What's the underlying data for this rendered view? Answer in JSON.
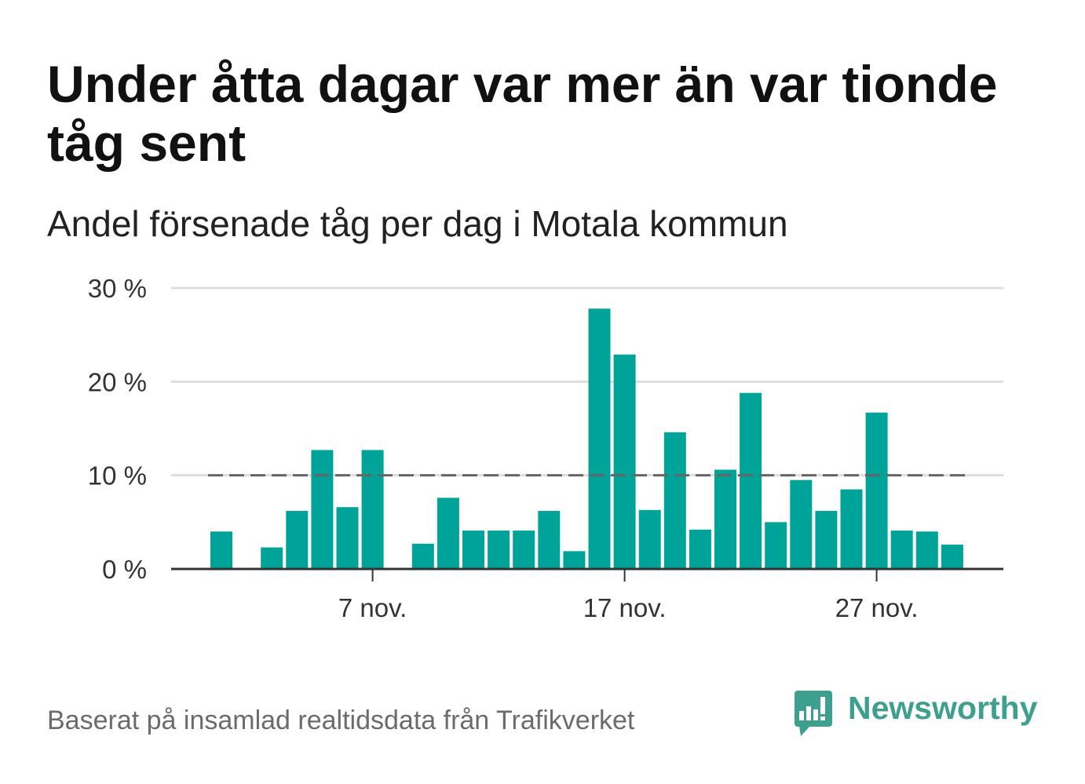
{
  "chart_data": {
    "type": "bar",
    "title": "Under åtta dagar var mer än var tionde tåg sent",
    "subtitle": "Andel försenade tåg per dag i Motala kommun",
    "xlabel": "",
    "ylabel": "",
    "categories": [
      "1 nov.",
      "2 nov.",
      "3 nov.",
      "4 nov.",
      "5 nov.",
      "6 nov.",
      "7 nov.",
      "8 nov.",
      "9 nov.",
      "10 nov.",
      "11 nov.",
      "12 nov.",
      "13 nov.",
      "14 nov.",
      "15 nov.",
      "16 nov.",
      "17 nov.",
      "18 nov.",
      "19 nov.",
      "20 nov.",
      "21 nov.",
      "22 nov.",
      "23 nov.",
      "24 nov.",
      "25 nov.",
      "26 nov.",
      "27 nov.",
      "28 nov.",
      "29 nov.",
      "30 nov."
    ],
    "values": [
      4.0,
      null,
      2.3,
      6.2,
      12.7,
      6.6,
      12.7,
      null,
      2.7,
      7.6,
      4.1,
      4.1,
      4.1,
      6.2,
      1.9,
      27.8,
      22.9,
      6.3,
      14.6,
      4.2,
      10.6,
      18.8,
      5.0,
      9.5,
      6.2,
      8.5,
      16.7,
      4.1,
      4.0,
      2.6
    ],
    "x_tick_labels": [
      "7 nov.",
      "17 nov.",
      "27 nov."
    ],
    "y_ticks": [
      0,
      10,
      20,
      30
    ],
    "y_tick_labels": [
      "0 %",
      "10 %",
      "20 %",
      "30 %"
    ],
    "ylim": [
      0,
      30
    ],
    "reference_line": {
      "value": 10,
      "style": "dashed"
    },
    "grid": true
  },
  "footer": {
    "source": "Baserat på insamlad realtidsdata från Trafikverket",
    "logo_text": "Newsworthy",
    "logo_icon": "newsworthy-chart-bubble-icon"
  },
  "colors": {
    "bar": "#00a398",
    "reference_line": "#666666",
    "grid": "#dddddd",
    "axis": "#333333",
    "logo": "#3f9f8e"
  }
}
